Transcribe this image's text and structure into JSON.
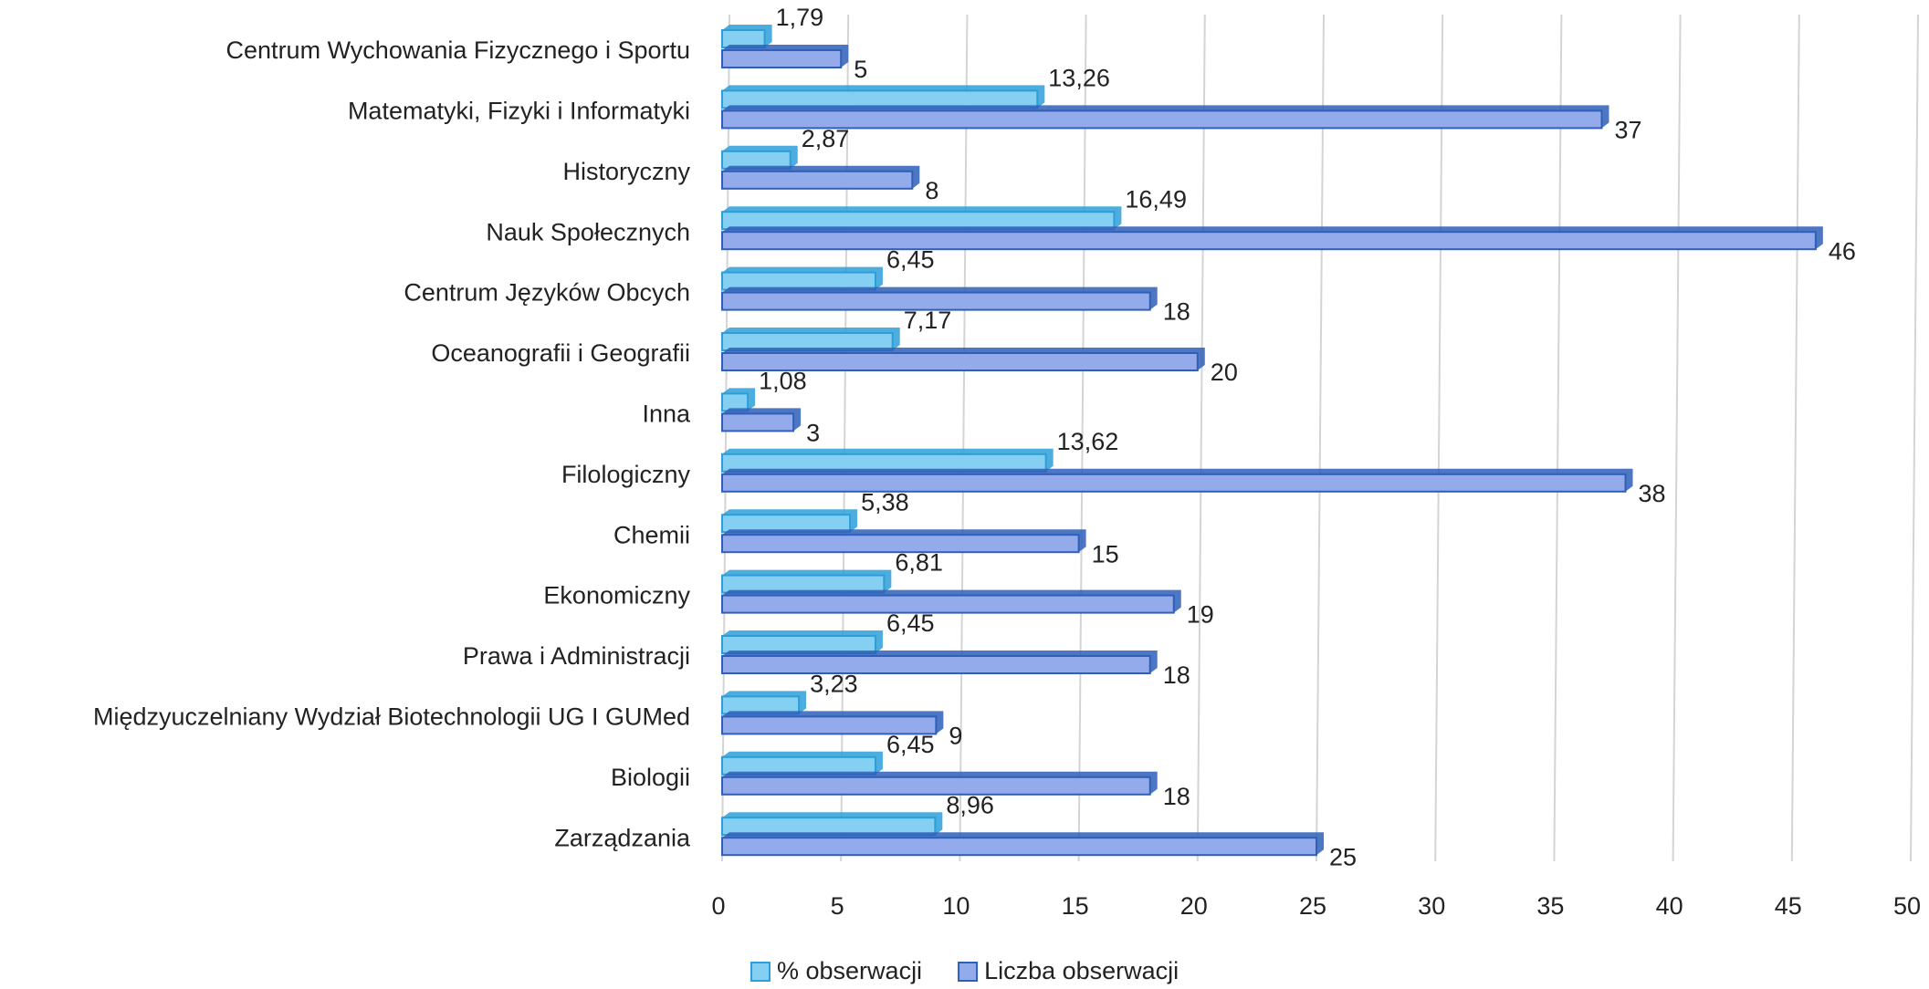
{
  "chart_data": {
    "type": "bar",
    "orientation": "horizontal",
    "categories": [
      "Centrum Wychowania Fizycznego i Sportu",
      "Matematyki, Fizyki i Informatyki",
      "Historyczny",
      "Nauk Społecznych",
      "Centrum Języków Obcych",
      "Oceanografii i Geografii",
      "Inna",
      "Filologiczny",
      "Chemii",
      "Ekonomiczny",
      "Prawa i Administracji",
      "Międzyuczelniany Wydział Biotechnologii UG I GUMed",
      "Biologii",
      "Zarządzania"
    ],
    "series": [
      {
        "name": "% obserwacji",
        "color": "#85cff2",
        "stroke": "#2d9fd8",
        "values": [
          1.79,
          13.26,
          2.87,
          16.49,
          6.45,
          7.17,
          1.08,
          13.62,
          5.38,
          6.81,
          6.45,
          3.23,
          6.45,
          8.96
        ],
        "value_labels": [
          "1,79",
          "13,26",
          "2,87",
          "16,49",
          "6,45",
          "7,17",
          "1,08",
          "13,62",
          "5,38",
          "6,81",
          "6,45",
          "3,23",
          "6,45",
          "8,96"
        ]
      },
      {
        "name": "Liczba obserwacji",
        "color": "#94abeb",
        "stroke": "#2f5fb8",
        "values": [
          5,
          37,
          8,
          46,
          18,
          20,
          3,
          38,
          15,
          19,
          18,
          9,
          18,
          25
        ]
      }
    ],
    "xlim": [
      0,
      50
    ],
    "xticks": [
      0,
      5,
      10,
      15,
      20,
      25,
      30,
      35,
      40,
      45,
      50
    ],
    "grid": true,
    "legend": "bottom"
  }
}
